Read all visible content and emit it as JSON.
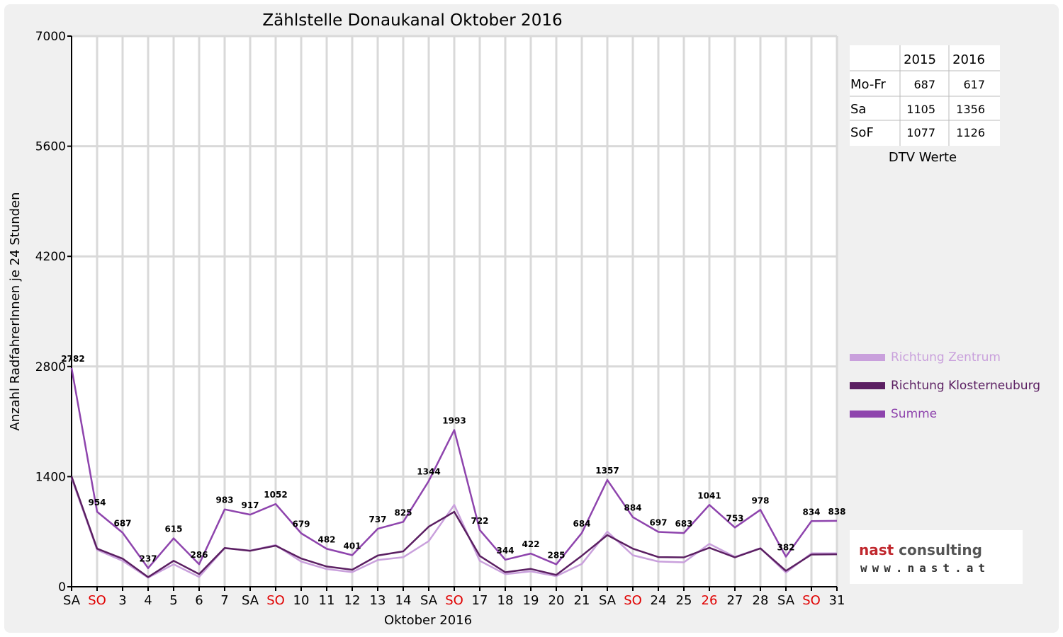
{
  "chart_data": {
    "type": "line",
    "title": "Zählstelle Donaukanal Oktober 2016",
    "xlabel": "Oktober 2016",
    "ylabel": "Anzahl RadfahrerInnen je 24 Stunden",
    "ylim": [
      0,
      7000
    ],
    "yticks": [
      "0",
      "1400",
      "2800",
      "4200",
      "5600",
      "7000"
    ],
    "grid": true,
    "legend_position": "right",
    "categories": [
      "SA",
      "SO",
      "3",
      "4",
      "5",
      "6",
      "7",
      "SA",
      "SO",
      "10",
      "11",
      "12",
      "13",
      "14",
      "SA",
      "SO",
      "17",
      "18",
      "19",
      "20",
      "21",
      "SA",
      "SO",
      "24",
      "25",
      "26",
      "27",
      "28",
      "SA",
      "SO",
      "31"
    ],
    "red_categories": [
      1,
      8,
      15,
      22,
      25,
      29
    ],
    "series": [
      {
        "name": "Richtung Zentrum",
        "color": "#c9a0dc",
        "values": [
          1380,
          470,
          330,
          115,
          285,
          125,
          490,
          460,
          530,
          320,
          225,
          185,
          340,
          375,
          580,
          1040,
          330,
          160,
          195,
          135,
          290,
          700,
          400,
          320,
          310,
          545,
          380,
          490,
          180,
          425,
          425
        ]
      },
      {
        "name": "Richtung Klosterneuburg",
        "color": "#5b1f62",
        "values": [
          1402,
          484,
          357,
          122,
          330,
          161,
          493,
          457,
          522,
          359,
          257,
          216,
          397,
          450,
          764,
          953,
          392,
          184,
          227,
          150,
          394,
          657,
          484,
          377,
          373,
          496,
          373,
          488,
          202,
          409,
          413
        ]
      },
      {
        "name": "Summe",
        "color": "#8e44ad",
        "values": [
          2782,
          954,
          687,
          237,
          615,
          286,
          983,
          917,
          1052,
          679,
          482,
          401,
          737,
          825,
          1344,
          1993,
          722,
          344,
          422,
          285,
          684,
          1357,
          884,
          697,
          683,
          1041,
          753,
          978,
          382,
          834,
          838
        ]
      }
    ]
  },
  "dtv_table": {
    "caption": "DTV Werte",
    "headers": [
      "",
      "2015",
      "2016"
    ],
    "rows": [
      [
        "Mo-Fr",
        "687",
        "617"
      ],
      [
        "Sa",
        "1105",
        "1356"
      ],
      [
        "SoF",
        "1077",
        "1126"
      ]
    ]
  },
  "branding": {
    "line1": "nast consulting",
    "line2": "www.nast.at"
  }
}
